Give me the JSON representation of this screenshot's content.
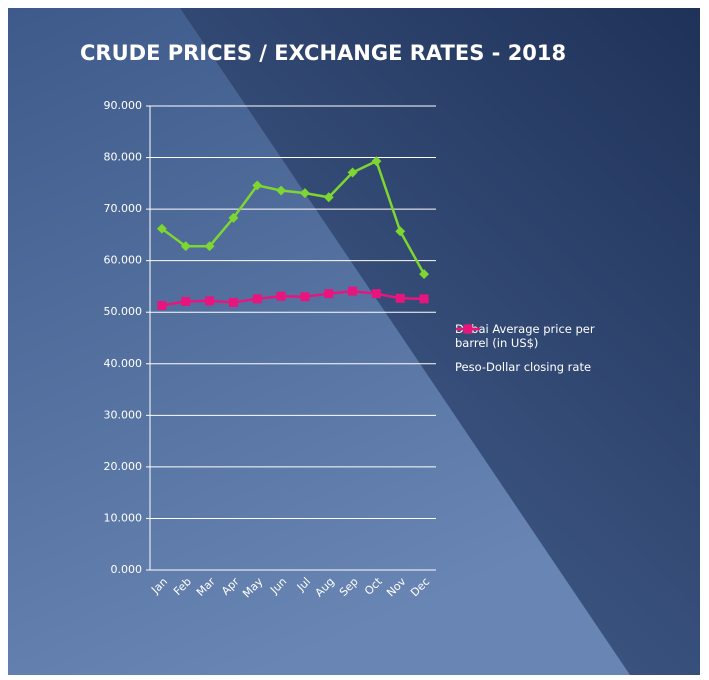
{
  "chart_data": {
    "type": "line",
    "title": "CRUDE PRICES / EXCHANGE RATES - 2018",
    "categories": [
      "Jan",
      "Feb",
      "Mar",
      "Apr",
      "May",
      "Jun",
      "Jul",
      "Aug",
      "Sep",
      "Oct",
      "Nov",
      "Dec"
    ],
    "series": [
      {
        "name": "Dubai Average price per barrel (in US$)",
        "color": "#7ed631",
        "values": [
          66.2,
          62.8,
          62.8,
          68.3,
          74.6,
          73.6,
          73.1,
          72.3,
          77.1,
          79.3,
          65.7,
          57.4
        ]
      },
      {
        "name": "Peso-Dollar closing rate",
        "color": "#e8157f",
        "values": [
          51.3,
          52.1,
          52.2,
          51.9,
          52.6,
          53.1,
          53.0,
          53.6,
          54.1,
          53.6,
          52.7,
          52.6
        ]
      }
    ],
    "ylim": [
      0,
      90
    ],
    "yticks": [
      {
        "value": 0,
        "label": "0.000"
      },
      {
        "value": 10,
        "label": "10.000"
      },
      {
        "value": 20,
        "label": "20.000"
      },
      {
        "value": 30,
        "label": "30.000"
      },
      {
        "value": 40,
        "label": "40.000"
      },
      {
        "value": 50,
        "label": "50.000"
      },
      {
        "value": 60,
        "label": "60.000"
      },
      {
        "value": 70,
        "label": "70.000"
      },
      {
        "value": 80,
        "label": "80.000"
      },
      {
        "value": 90,
        "label": "90.000"
      }
    ],
    "grid": true,
    "legend": "right"
  }
}
